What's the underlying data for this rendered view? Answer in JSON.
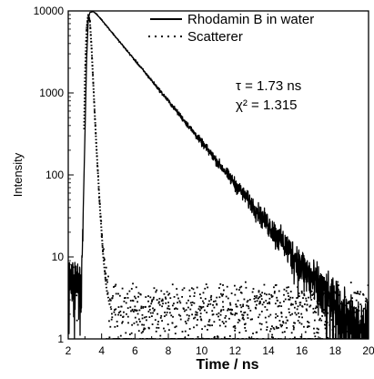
{
  "chart_data": {
    "type": "line",
    "xlabel": "Time / ns",
    "ylabel": "Intensity",
    "xlim": [
      2,
      20
    ],
    "ylim": [
      1,
      10000
    ],
    "x_scale": "linear",
    "y_scale": "log",
    "x_ticks": [
      2,
      4,
      6,
      8,
      10,
      12,
      14,
      16,
      18,
      20
    ],
    "x_tick_labels": [
      "2",
      "4",
      "6",
      "8",
      "10",
      "12",
      "14",
      "16",
      "18",
      "20"
    ],
    "y_ticks": [
      1,
      10,
      100,
      1000,
      10000
    ],
    "y_tick_labels": [
      "1",
      "10",
      "100",
      "1000",
      "10000"
    ],
    "legend_position": "top-right",
    "grid": false,
    "series": [
      {
        "name": "Rhodamin B in water",
        "style": "solid",
        "color": "#000000",
        "x": [
          2.0,
          2.8,
          3.0,
          3.1,
          3.2,
          3.3,
          3.5,
          3.7,
          4.0,
          5.0,
          6.0,
          8.0,
          10.0,
          12.0,
          14.0,
          16.0,
          18.0,
          19.0,
          20.0
        ],
        "y": [
          5,
          5,
          300,
          2500,
          8000,
          9600,
          9800,
          9100,
          7800,
          4400,
          2500,
          800,
          250,
          78,
          25,
          8,
          2.4,
          1.3,
          1.0
        ]
      },
      {
        "name": "Scatterer",
        "style": "dotted",
        "color": "#000000",
        "x": [
          2.0,
          2.8,
          3.0,
          3.1,
          3.2,
          3.3,
          3.4,
          3.5,
          3.6,
          3.7,
          3.8,
          3.9,
          4.0,
          4.1,
          4.3,
          4.5,
          5.0,
          8.0,
          12.0,
          16.0,
          20.0
        ],
        "y": [
          5,
          5,
          1500,
          6000,
          9000,
          7500,
          3500,
          1300,
          500,
          200,
          90,
          40,
          20,
          10,
          4,
          2.5,
          2,
          2,
          2,
          2,
          2
        ]
      }
    ],
    "annotations": [
      {
        "text": "τ = 1.73 ns"
      },
      {
        "text": "χ² = 1.315"
      }
    ]
  }
}
